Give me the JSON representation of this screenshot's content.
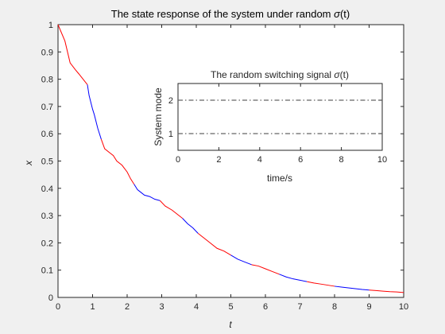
{
  "chart_data": [
    {
      "type": "line",
      "title_text": "The state response of the system under random ",
      "title_sym": "σ",
      "title_tail": "(t)",
      "xlabel": "t",
      "ylabel": "x",
      "xlim": [
        0,
        10
      ],
      "ylim": [
        0,
        1
      ],
      "xticks": [
        "0",
        "1",
        "2",
        "3",
        "4",
        "5",
        "6",
        "7",
        "8",
        "9",
        "10"
      ],
      "yticks": [
        "0",
        "0.1",
        "0.2",
        "0.3",
        "0.4",
        "0.5",
        "0.6",
        "0.7",
        "0.8",
        "0.9",
        "1"
      ],
      "grid": false,
      "series": [
        {
          "color": "#ff0000",
          "alt_color": "#0000ff",
          "x": [
            0,
            0.2,
            0.35,
            0.5,
            0.6,
            0.85,
            0.9,
            1.0,
            1.05,
            1.15,
            1.25,
            1.35,
            1.5,
            1.6,
            1.7,
            1.85,
            2.0,
            2.1,
            2.2,
            2.3,
            2.4,
            2.5,
            2.65,
            2.8,
            2.95,
            3.1,
            3.3,
            3.45,
            3.6,
            3.75,
            3.9,
            4.05,
            4.2,
            4.4,
            4.6,
            4.8,
            5.0,
            5.2,
            5.4,
            5.6,
            5.8,
            6.0,
            6.2,
            6.4,
            6.6,
            6.8,
            7.0,
            7.2,
            7.4,
            7.6,
            7.8,
            8.0,
            8.2,
            8.4,
            8.6,
            8.8,
            9.0,
            9.2,
            9.4,
            9.6,
            9.8,
            10.0
          ],
          "y": [
            1.0,
            0.94,
            0.86,
            0.835,
            0.82,
            0.78,
            0.74,
            0.69,
            0.67,
            0.62,
            0.58,
            0.545,
            0.53,
            0.52,
            0.5,
            0.485,
            0.46,
            0.435,
            0.415,
            0.395,
            0.385,
            0.375,
            0.37,
            0.36,
            0.355,
            0.335,
            0.32,
            0.305,
            0.29,
            0.27,
            0.255,
            0.235,
            0.22,
            0.2,
            0.18,
            0.17,
            0.155,
            0.14,
            0.13,
            0.12,
            0.115,
            0.105,
            0.095,
            0.085,
            0.075,
            0.068,
            0.063,
            0.058,
            0.053,
            0.049,
            0.045,
            0.041,
            0.038,
            0.035,
            0.032,
            0.029,
            0.027,
            0.025,
            0.023,
            0.021,
            0.02,
            0.018
          ],
          "switch_color_at": [
            0.85,
            1.25,
            2.2,
            2.95,
            3.6,
            4.05,
            5.0,
            5.6,
            6.4,
            7.2,
            8.0,
            9.0
          ]
        }
      ]
    },
    {
      "type": "line",
      "title_text": "The random switching signal ",
      "title_sym": "σ",
      "title_tail": "(t)",
      "xlabel": "time/s",
      "ylabel": "System mode",
      "xlim": [
        0,
        10
      ],
      "ylim": [
        0.5,
        2.5
      ],
      "xticks": [
        "0",
        "2",
        "4",
        "6",
        "8",
        "10"
      ],
      "yticks": [
        "1",
        "2"
      ],
      "grid": false,
      "series": [
        {
          "color": "#666666",
          "style": "dash-dot",
          "x": [
            0,
            10
          ],
          "y": [
            2,
            2
          ]
        },
        {
          "color": "#666666",
          "style": "dash-dot",
          "x": [
            0,
            10
          ],
          "y": [
            1,
            1
          ]
        }
      ]
    }
  ]
}
